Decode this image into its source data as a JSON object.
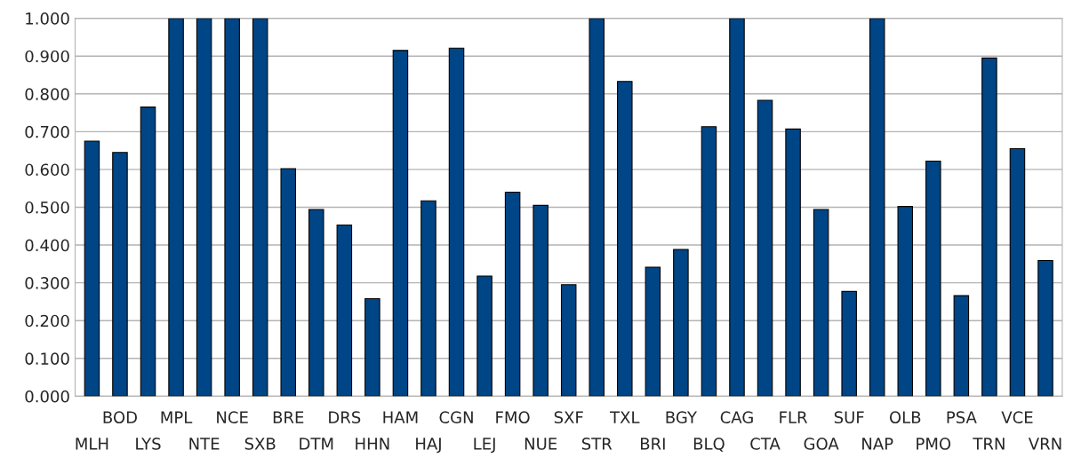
{
  "chart_data": {
    "type": "bar",
    "categories": [
      "MLH",
      "BOD",
      "LYS",
      "MPL",
      "NTE",
      "NCE",
      "SXB",
      "BRE",
      "DTM",
      "DRS",
      "HHN",
      "HAM",
      "HAJ",
      "CGN",
      "LEJ",
      "FMO",
      "NUE",
      "SXF",
      "STR",
      "TXL",
      "BRI",
      "BGY",
      "BLQ",
      "CAG",
      "CTA",
      "FLR",
      "GOA",
      "SUF",
      "NAP",
      "OLB",
      "PMO",
      "PSA",
      "TRN",
      "VCE",
      "VRN"
    ],
    "values": [
      0.675,
      0.645,
      0.765,
      1.0,
      1.0,
      1.0,
      1.0,
      0.602,
      0.494,
      0.453,
      0.258,
      0.915,
      0.517,
      0.921,
      0.318,
      0.54,
      0.505,
      0.295,
      1.0,
      0.833,
      0.341,
      0.388,
      0.713,
      1.0,
      0.783,
      0.707,
      0.494,
      0.277,
      1.0,
      0.502,
      0.622,
      0.266,
      0.895,
      0.655,
      0.359
    ],
    "color": "#004586",
    "ylim": [
      0,
      1
    ],
    "yticks": [
      {
        "value": 0,
        "label": "0.000"
      },
      {
        "value": 0.1,
        "label": "0.100"
      },
      {
        "value": 0.2,
        "label": "0.200"
      },
      {
        "value": 0.3,
        "label": "0.300"
      },
      {
        "value": 0.4,
        "label": "0.400"
      },
      {
        "value": 0.5,
        "label": "0.500"
      },
      {
        "value": 0.6,
        "label": "0.600"
      },
      {
        "value": 0.7,
        "label": "0.700"
      },
      {
        "value": 0.8,
        "label": "0.800"
      },
      {
        "value": 0.9,
        "label": "0.900"
      },
      {
        "value": 1,
        "label": "1.000"
      }
    ],
    "grid": "y",
    "legend": false
  }
}
